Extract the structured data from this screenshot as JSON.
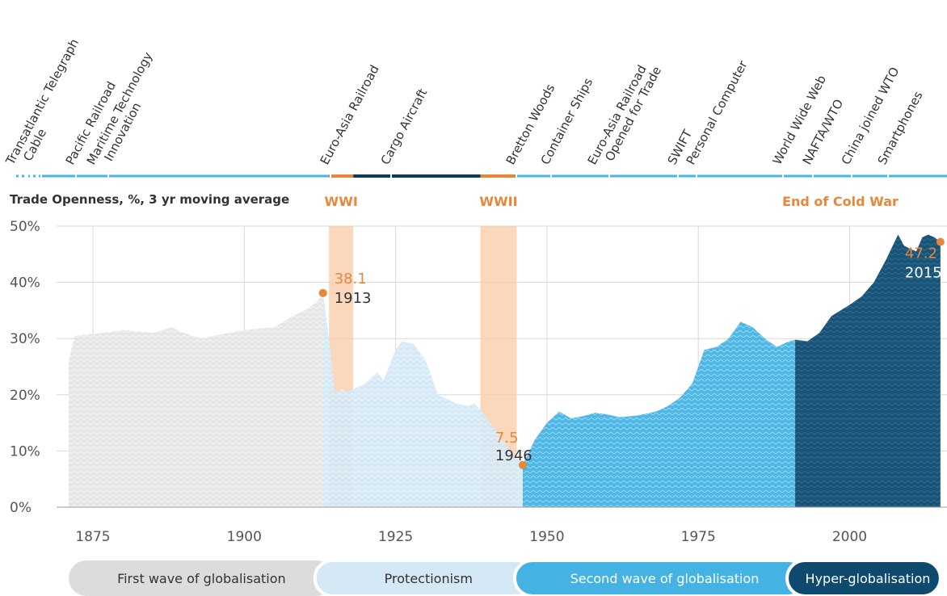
{
  "chart_data": {
    "type": "area",
    "y_label": "Trade Openness, %, 3 yr moving average",
    "ylim": [
      0,
      50
    ],
    "yticks": [
      {
        "value": 0,
        "label": "0%"
      },
      {
        "value": 10,
        "label": "10%"
      },
      {
        "value": 20,
        "label": "20%"
      },
      {
        "value": 30,
        "label": "30%"
      },
      {
        "value": 40,
        "label": "40%"
      },
      {
        "value": 50,
        "label": "50%"
      }
    ],
    "xlim": [
      1870,
      2017
    ],
    "xticks": [
      1875,
      1900,
      1925,
      1950,
      1975,
      2000
    ],
    "grid": true,
    "series": [
      {
        "name": "First wave of globalisation",
        "color": "#e6e6e6",
        "x": [
          1871,
          1872,
          1875,
          1880,
          1885,
          1888,
          1890,
          1893,
          1895,
          1900,
          1905,
          1908,
          1910,
          1912,
          1913
        ],
        "values": [
          26,
          30.5,
          30.8,
          31.5,
          31,
          32,
          31,
          30,
          30.5,
          31.5,
          32,
          34,
          35,
          36.5,
          38.1
        ]
      },
      {
        "name": "Protectionism",
        "color": "#d4e8f5",
        "x": [
          1913,
          1914,
          1915,
          1916,
          1917,
          1918,
          1920,
          1922,
          1923,
          1925,
          1926,
          1928,
          1930,
          1932,
          1935,
          1937,
          1938,
          1940,
          1942,
          1944,
          1946
        ],
        "values": [
          38.1,
          30,
          20.5,
          21,
          20.5,
          21,
          22,
          24,
          22.5,
          28,
          29.5,
          29,
          26,
          20,
          18.5,
          18,
          18.5,
          16,
          13,
          10,
          7.5
        ]
      },
      {
        "name": "Second wave of globalisation",
        "color": "#44b3e4",
        "x": [
          1946,
          1948,
          1950,
          1952,
          1954,
          1956,
          1958,
          1960,
          1962,
          1965,
          1968,
          1970,
          1972,
          1974,
          1976,
          1978,
          1980,
          1982,
          1984,
          1986,
          1988,
          1990,
          1991
        ],
        "values": [
          7.5,
          12,
          15,
          17,
          15.8,
          16.2,
          16.8,
          16.5,
          16,
          16.3,
          17,
          18,
          19.5,
          22,
          28,
          28.5,
          30,
          33,
          32,
          30,
          28.5,
          29.5,
          29.8
        ]
      },
      {
        "name": "Hyper-globalisation",
        "color": "#0e4a6e",
        "x": [
          1991,
          1993,
          1995,
          1997,
          2000,
          2002,
          2004,
          2006,
          2008,
          2009,
          2011,
          2012,
          2013,
          2014,
          2015
        ],
        "values": [
          29.8,
          29.5,
          31,
          34,
          36,
          37.5,
          40,
          44,
          48.5,
          46.5,
          45.5,
          48,
          48.5,
          48,
          47.2
        ]
      }
    ],
    "bands": [
      {
        "label": "WWI",
        "start": 1914,
        "end": 1918
      },
      {
        "label": "WWII",
        "start": 1939,
        "end": 1945
      }
    ],
    "annotation": "End of Cold War",
    "highlights": [
      {
        "x": 1913,
        "y": 38.1
      },
      {
        "x": 1946,
        "y": 7.5
      },
      {
        "x": 2015,
        "y": 47.2
      }
    ],
    "events": [
      [
        "Transatlantic Telegraph",
        "Cable"
      ],
      [
        "Pacific Railroad"
      ],
      [
        "Maritime Technology",
        "Innovation"
      ],
      [
        "Euro-Asia Railroad"
      ],
      [
        "Cargo Aircraft"
      ],
      [
        "Bretton Woods"
      ],
      [
        "Container Ships"
      ],
      [
        "Euro-Asia Railroad",
        "Opened for Trade"
      ],
      [
        "SWIFT"
      ],
      [
        "Personal Computer"
      ],
      [
        "World Wide Web"
      ],
      [
        "NAFTA/WTO"
      ],
      [
        "China joined WTO"
      ],
      [
        "Smartphones"
      ]
    ]
  }
}
